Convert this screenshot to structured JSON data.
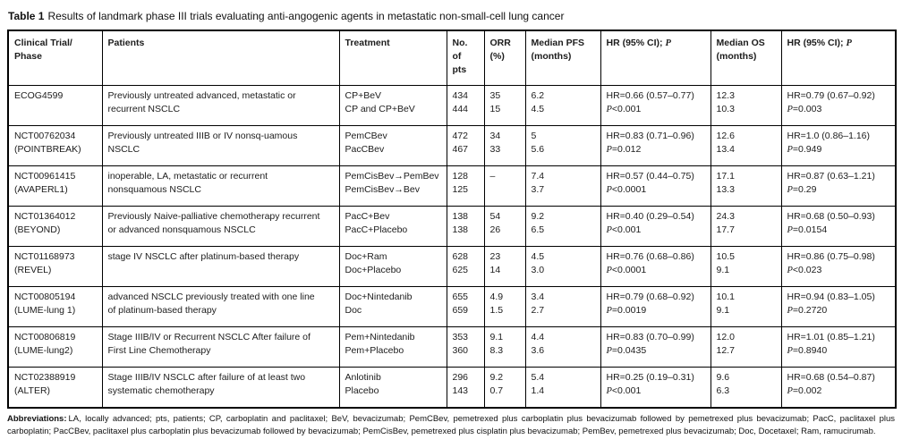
{
  "title": {
    "label": "Table 1",
    "text": "Results of landmark phase III trials evaluating anti-angogenic agents in metastatic non-small-cell lung cancer"
  },
  "table": {
    "cell_keys": [
      "trial",
      "patients",
      "treatment",
      "pts",
      "orr",
      "pfs",
      "hr_pfs",
      "os",
      "hr_os"
    ],
    "columns": [
      {
        "key": "trial",
        "label": "Clinical Trial/ Phase",
        "lines": [
          "Clinical Trial/",
          "Phase"
        ]
      },
      {
        "key": "patients",
        "label": "Patients",
        "lines": [
          "Patients"
        ]
      },
      {
        "key": "treatment",
        "label": "Treatment",
        "lines": [
          "Treatment"
        ]
      },
      {
        "key": "pts",
        "label": "No. of pts",
        "lines": [
          "No.",
          "of",
          "pts"
        ]
      },
      {
        "key": "orr",
        "label": "ORR (%)",
        "lines": [
          "ORR",
          "(%)"
        ]
      },
      {
        "key": "pfs",
        "label": "Median PFS (months)",
        "lines": [
          "Median PFS",
          "(months)"
        ]
      },
      {
        "key": "hr_pfs",
        "label": "HR (95% CI); P",
        "lines": [
          "HR (95% CI); P"
        ]
      },
      {
        "key": "os",
        "label": "Median OS (months)",
        "lines": [
          "Median OS",
          "(months)"
        ]
      },
      {
        "key": "hr_os",
        "label": "HR (95% CI); P",
        "lines": [
          "HR (95% CI); P"
        ]
      }
    ],
    "rows": [
      {
        "trial": [
          "ECOG4599"
        ],
        "patients": [
          "Previously untreated advanced, metastatic or",
          "recurrent NSCLC"
        ],
        "treatment": [
          "CP+BeV",
          "CP and CP+BeV"
        ],
        "pts": [
          "434",
          "444"
        ],
        "orr": [
          "35",
          "15"
        ],
        "pfs": [
          "6.2",
          "4.5"
        ],
        "hr_pfs": [
          "HR=0.66 (0.57–0.77)",
          "P<0.001"
        ],
        "os": [
          "12.3",
          "10.3"
        ],
        "hr_os": [
          "HR=0.79 (0.67–0.92)",
          "P=0.003"
        ]
      },
      {
        "trial": [
          "NCT00762034",
          "(POINTBREAK)"
        ],
        "patients": [
          "Previously untreated IIIB or IV nonsq-uamous",
          "NSCLC"
        ],
        "treatment": [
          "PemCBev",
          "PacCBev"
        ],
        "pts": [
          "472",
          "467"
        ],
        "orr": [
          "34",
          "33"
        ],
        "pfs": [
          "5",
          "5.6"
        ],
        "hr_pfs": [
          "HR=0.83 (0.71–0.96)",
          "P=0.012"
        ],
        "os": [
          "12.6",
          "13.4"
        ],
        "hr_os": [
          "HR=1.0 (0.86–1.16)",
          "P=0.949"
        ]
      },
      {
        "trial": [
          "NCT00961415",
          "(AVAPERL1)"
        ],
        "patients": [
          "inoperable, LA, metastatic or recurrent",
          "nonsquamous NSCLC"
        ],
        "treatment": [
          "PemCisBev→PemBev",
          "PemCisBev→Bev"
        ],
        "pts": [
          "128",
          "125"
        ],
        "orr": [
          "–"
        ],
        "pfs": [
          "7.4",
          "3.7"
        ],
        "hr_pfs": [
          "HR=0.57 (0.44–0.75)",
          "P<0.0001"
        ],
        "os": [
          "17.1",
          "13.3"
        ],
        "hr_os": [
          "HR=0.87 (0.63–1.21)",
          "P=0.29"
        ]
      },
      {
        "trial": [
          "NCT01364012",
          "(BEYOND)"
        ],
        "patients": [
          "Previously Naive-palliative chemotherapy recurrent",
          "or advanced nonsquamous NSCLC"
        ],
        "treatment": [
          "PacC+Bev",
          "PacC+Placebo"
        ],
        "pts": [
          "138",
          "138"
        ],
        "orr": [
          "54",
          "26"
        ],
        "pfs": [
          "9.2",
          "6.5"
        ],
        "hr_pfs": [
          "HR=0.40 (0.29–0.54)",
          "P<0.001"
        ],
        "os": [
          "24.3",
          "17.7"
        ],
        "hr_os": [
          "HR=0.68 (0.50–0.93)",
          "P=0.0154"
        ]
      },
      {
        "trial": [
          "NCT01168973",
          "(REVEL)"
        ],
        "patients": [
          "stage IV NSCLC after platinum-based therapy"
        ],
        "treatment": [
          "Doc+Ram",
          "Doc+Placebo"
        ],
        "pts": [
          "628",
          "625"
        ],
        "orr": [
          "23",
          "14"
        ],
        "pfs": [
          "4.5",
          "3.0"
        ],
        "hr_pfs": [
          "HR=0.76 (0.68–0.86)",
          "P<0.0001"
        ],
        "os": [
          "10.5",
          "9.1"
        ],
        "hr_os": [
          "HR=0.86 (0.75–0.98)",
          "P<0.023"
        ]
      },
      {
        "trial": [
          "NCT00805194",
          "(LUME-lung 1)"
        ],
        "patients": [
          "advanced NSCLC previously treated with one line",
          "of platinum-based therapy"
        ],
        "treatment": [
          "Doc+Nintedanib",
          "Doc"
        ],
        "pts": [
          "655",
          "659"
        ],
        "orr": [
          "4.9",
          "1.5"
        ],
        "pfs": [
          "3.4",
          "2.7"
        ],
        "hr_pfs": [
          "HR=0.79 (0.68–0.92)",
          "P=0.0019"
        ],
        "os": [
          "10.1",
          "9.1"
        ],
        "hr_os": [
          "HR=0.94 (0.83–1.05)",
          "P=0.2720"
        ]
      },
      {
        "trial": [
          "NCT00806819",
          "(LUME-lung2)"
        ],
        "patients": [
          "Stage IIIB/IV or Recurrent NSCLC After failure of",
          "First Line Chemotherapy"
        ],
        "treatment": [
          "Pem+Nintedanib",
          "Pem+Placebo"
        ],
        "pts": [
          "353",
          "360"
        ],
        "orr": [
          "9.1",
          "8.3"
        ],
        "pfs": [
          "4.4",
          "3.6"
        ],
        "hr_pfs": [
          "HR=0.83 (0.70–0.99)",
          "P=0.0435"
        ],
        "os": [
          "12.0",
          "12.7"
        ],
        "hr_os": [
          "HR=1.01 (0.85–1.21)",
          "P=0.8940"
        ]
      },
      {
        "trial": [
          "NCT02388919",
          "(ALTER)"
        ],
        "patients": [
          "Stage IIIB/IV NSCLC after failure of at least two",
          "systematic chemotherapy"
        ],
        "treatment": [
          "Anlotinib",
          "Placebo"
        ],
        "pts": [
          "296",
          "143"
        ],
        "orr": [
          "9.2",
          "0.7"
        ],
        "pfs": [
          "5.4",
          "1.4"
        ],
        "hr_pfs": [
          "HR=0.25 (0.19–0.31)",
          "P<0.001"
        ],
        "os": [
          "9.6",
          "6.3"
        ],
        "hr_os": [
          "HR=0.68 (0.54–0.87)",
          "P=0.002"
        ]
      }
    ]
  },
  "footer": {
    "label": "Abbreviations:",
    "text": "LA, locally advanced; pts, patients; CP, carboplatin and paclitaxel; BeV, bevacizumab; PemCBev, pemetrexed plus carboplatin plus bevacizumab followed by pemetrexed plus bevacizumab; PacC, paclitaxel plus carboplatin; PacCBev, paclitaxel plus carboplatin plus bevacizumab followed by bevacizumab; PemCisBev, pemetrexed plus cisplatin plus bevacizumab; PemBev, pemetrexed plus bevacizumab; Doc, Docetaxel; Ram, ramucirumab."
  }
}
